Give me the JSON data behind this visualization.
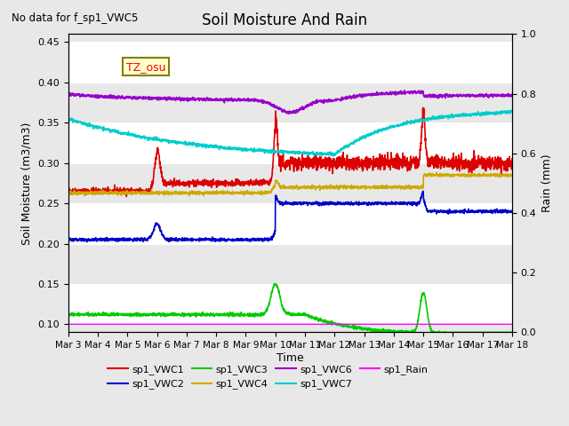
{
  "title": "Soil Moisture And Rain",
  "subtitle": "No data for f_sp1_VWC5",
  "xlabel": "Time",
  "ylabel_left": "Soil Moisture (m3/m3)",
  "ylabel_right": "Rain (mm)",
  "tz_label": "TZ_osu",
  "ylim_left": [
    0.09,
    0.46
  ],
  "ylim_right": [
    0.0,
    1.0
  ],
  "background_color": "#e8e8e8",
  "axes_bg_color": "#e8e8e8",
  "series": {
    "sp1_VWC1": {
      "color": "#dd0000",
      "label": "sp1_VWC1"
    },
    "sp1_VWC2": {
      "color": "#0000cc",
      "label": "sp1_VWC2"
    },
    "sp1_VWC3": {
      "color": "#00cc00",
      "label": "sp1_VWC3"
    },
    "sp1_VWC4": {
      "color": "#ccaa00",
      "label": "sp1_VWC4"
    },
    "sp1_VWC6": {
      "color": "#9900cc",
      "label": "sp1_VWC6"
    },
    "sp1_VWC7": {
      "color": "#00cccc",
      "label": "sp1_VWC7"
    },
    "sp1_Rain": {
      "color": "#ff00ff",
      "label": "sp1_Rain"
    }
  },
  "x_tick_labels": [
    "Mar 3",
    "Mar 4",
    "Mar 5",
    "Mar 6",
    "Mar 7",
    "Mar 8",
    "Mar 9",
    "Mar 10",
    "Mar 11",
    "Mar 12",
    "Mar 13",
    "Mar 14",
    "Mar 15",
    "Mar 16",
    "Mar 17",
    "Mar 18"
  ],
  "yticks_left": [
    0.1,
    0.15,
    0.2,
    0.25,
    0.3,
    0.35,
    0.4,
    0.45
  ],
  "yticks_right": [
    0.0,
    0.2,
    0.4,
    0.6,
    0.8,
    1.0
  ]
}
